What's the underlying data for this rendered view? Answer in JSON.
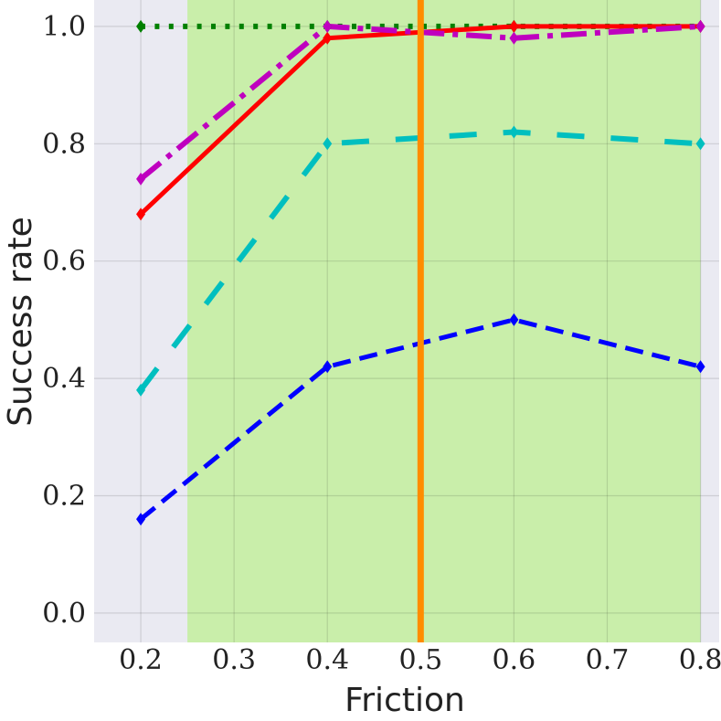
{
  "chart_data": {
    "type": "line",
    "xlabel": "Friction",
    "ylabel": "Success rate",
    "xlim": [
      0.15,
      0.82
    ],
    "ylim": [
      -0.05,
      1.045
    ],
    "xticks": [
      "0.2",
      "0.3",
      "0.4",
      "0.5",
      "0.6",
      "0.7",
      "0.8"
    ],
    "yticks": [
      "0.0",
      "0.2",
      "0.4",
      "0.6",
      "0.8",
      "1.0"
    ],
    "grid": true,
    "shaded_region": {
      "x_start": 0.25,
      "x_end": 0.8,
      "color": "#c9eeaa"
    },
    "vertical_line": {
      "x": 0.5,
      "color": "#ff8c00"
    },
    "series": [
      {
        "style": "dotted",
        "color": "#008000",
        "x": [
          0.2,
          0.4,
          0.6,
          0.8
        ],
        "values": [
          1.0,
          1.0,
          1.0,
          1.0
        ]
      },
      {
        "style": "solid",
        "color": "#ff0000",
        "x": [
          0.2,
          0.4,
          0.6,
          0.8
        ],
        "values": [
          0.68,
          0.98,
          1.0,
          1.0
        ]
      },
      {
        "style": "dashdot",
        "color": "#bf00bf",
        "x": [
          0.2,
          0.4,
          0.6,
          0.8
        ],
        "values": [
          0.74,
          1.0,
          0.98,
          1.0
        ]
      },
      {
        "style": "longdash",
        "color": "#00bfbf",
        "x": [
          0.2,
          0.4,
          0.6,
          0.8
        ],
        "values": [
          0.38,
          0.8,
          0.82,
          0.8
        ]
      },
      {
        "style": "dashed",
        "color": "#0000ff",
        "x": [
          0.2,
          0.4,
          0.6,
          0.8
        ],
        "values": [
          0.16,
          0.42,
          0.5,
          0.42
        ]
      }
    ]
  }
}
